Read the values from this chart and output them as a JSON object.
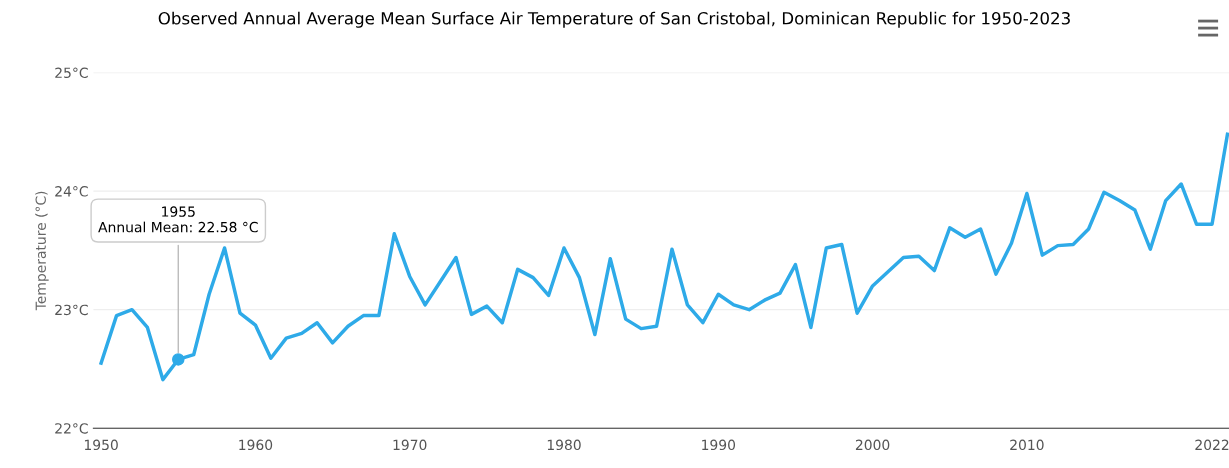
{
  "chart_data": {
    "type": "line",
    "title": "Observed Annual Average Mean Surface Air Temperature of San Cristobal, Dominican Republic for 1950-2023",
    "ylabel": "Temperature (°C)",
    "x": [
      1950,
      1951,
      1952,
      1953,
      1954,
      1955,
      1956,
      1957,
      1958,
      1959,
      1960,
      1961,
      1962,
      1963,
      1964,
      1965,
      1966,
      1967,
      1968,
      1969,
      1970,
      1971,
      1972,
      1973,
      1974,
      1975,
      1976,
      1977,
      1978,
      1979,
      1980,
      1981,
      1982,
      1983,
      1984,
      1985,
      1986,
      1987,
      1988,
      1989,
      1990,
      1991,
      1992,
      1993,
      1994,
      1995,
      1996,
      1997,
      1998,
      1999,
      2000,
      2001,
      2002,
      2003,
      2004,
      2005,
      2006,
      2007,
      2008,
      2009,
      2010,
      2011,
      2012,
      2013,
      2014,
      2015,
      2016,
      2017,
      2018,
      2019,
      2020,
      2021,
      2022,
      2023
    ],
    "series": [
      {
        "color": "#2eaae8",
        "values": [
          22.55,
          22.95,
          23.0,
          22.85,
          22.41,
          22.58,
          22.62,
          23.13,
          23.52,
          22.97,
          22.87,
          22.59,
          22.76,
          22.8,
          22.89,
          22.72,
          22.86,
          22.95,
          22.95,
          23.64,
          23.28,
          23.04,
          23.24,
          23.44,
          22.96,
          23.03,
          22.89,
          23.34,
          23.27,
          23.12,
          23.52,
          23.27,
          22.79,
          23.43,
          22.92,
          22.84,
          22.86,
          23.51,
          23.04,
          22.89,
          23.13,
          23.04,
          23.0,
          23.08,
          23.14,
          23.38,
          22.85,
          23.52,
          23.55,
          22.97,
          23.2,
          23.32,
          23.44,
          23.45,
          23.33,
          23.69,
          23.61,
          23.68,
          23.3,
          23.56,
          23.98,
          23.46,
          23.54,
          23.55,
          23.68,
          23.99,
          23.92,
          23.84,
          23.51,
          23.92,
          24.06,
          23.72,
          23.72,
          24.48
        ]
      }
    ],
    "annotations": [
      {
        "text": "1955\nAnnual Mean: 22.58 °C",
        "x": 1955,
        "y": 22.58
      }
    ],
    "xlim": [
      1949.5,
      2023.1
    ],
    "xticks": [
      1950,
      1960,
      1970,
      1980,
      1990,
      2000,
      2010,
      2022
    ],
    "ylim": [
      22,
      25
    ],
    "yticks": [
      {
        "value": 22,
        "label": "22°C"
      },
      {
        "value": 23,
        "label": "23°C"
      },
      {
        "value": 24,
        "label": "24°C"
      },
      {
        "value": 25,
        "label": "25°C"
      }
    ],
    "grid": "y",
    "marker": "none",
    "line_style": "solid"
  }
}
